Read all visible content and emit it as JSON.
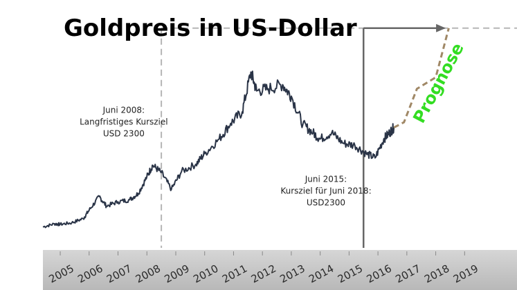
{
  "chart_data": {
    "type": "line",
    "title": "Goldpreis in US-Dollar",
    "xlabel": "",
    "ylabel": "",
    "xlim": [
      2004.4,
      2019.4
    ],
    "ylim": [
      200,
      2450
    ],
    "x_ticks": [
      "2005",
      "2006",
      "2007",
      "2008",
      "2009",
      "2010",
      "2011",
      "2012",
      "2013",
      "2014",
      "2015",
      "2016",
      "2017",
      "2018",
      "2019"
    ],
    "grid": false,
    "colors": {
      "price": "#2a3447",
      "prognosis": "#a08866",
      "prognosis_label": "#33dd22",
      "reference": "#b5b5b5",
      "marker": "#666666"
    },
    "series": [
      {
        "name": "",
        "values": [
          [
            2004.4,
            400
          ],
          [
            2004.8,
            430
          ],
          [
            2005.0,
            425
          ],
          [
            2005.4,
            440
          ],
          [
            2005.8,
            480
          ],
          [
            2006.0,
            560
          ],
          [
            2006.35,
            690
          ],
          [
            2006.6,
            600
          ],
          [
            2007.0,
            640
          ],
          [
            2007.4,
            660
          ],
          [
            2007.7,
            720
          ],
          [
            2008.0,
            880
          ],
          [
            2008.2,
            990
          ],
          [
            2008.5,
            920
          ],
          [
            2008.85,
            760
          ],
          [
            2009.2,
            930
          ],
          [
            2009.7,
            1000
          ],
          [
            2010.0,
            1100
          ],
          [
            2010.5,
            1240
          ],
          [
            2010.9,
            1390
          ],
          [
            2011.3,
            1500
          ],
          [
            2011.6,
            1880
          ],
          [
            2011.8,
            1700
          ],
          [
            2012.2,
            1720
          ],
          [
            2012.7,
            1760
          ],
          [
            2013.0,
            1650
          ],
          [
            2013.4,
            1380
          ],
          [
            2013.75,
            1300
          ],
          [
            2014.0,
            1240
          ],
          [
            2014.4,
            1300
          ],
          [
            2014.8,
            1200
          ],
          [
            2015.2,
            1180
          ],
          [
            2015.6,
            1100
          ],
          [
            2015.9,
            1060
          ],
          [
            2016.2,
            1240
          ],
          [
            2016.4,
            1300
          ],
          [
            2016.55,
            1350
          ]
        ]
      }
    ],
    "prognosis": {
      "label": "Prognose",
      "values": [
        [
          2016.55,
          1350
        ],
        [
          2016.9,
          1400
        ],
        [
          2017.35,
          1720
        ],
        [
          2018.0,
          1830
        ],
        [
          2018.45,
          2300
        ]
      ]
    },
    "reference_lines": [
      {
        "x_from": 2008.5,
        "x_to": 2019.4,
        "y": 2300
      },
      {
        "x": 2008.5
      }
    ],
    "marker_lines": [
      {
        "x": 2015.5
      },
      {
        "x_from": 2015.5,
        "x_to": 2018.3,
        "y": 2300
      }
    ],
    "annotations": [
      {
        "lines": [
          "Juni 2008:",
          "Langfristiges Kursziel",
          "USD 2300"
        ],
        "x": 2007.2,
        "y": 1490
      },
      {
        "lines": [
          "Juni 2015:",
          "Kursziel für Juni 2018:",
          "USD2300"
        ],
        "x": 2014.2,
        "y": 830
      }
    ]
  }
}
